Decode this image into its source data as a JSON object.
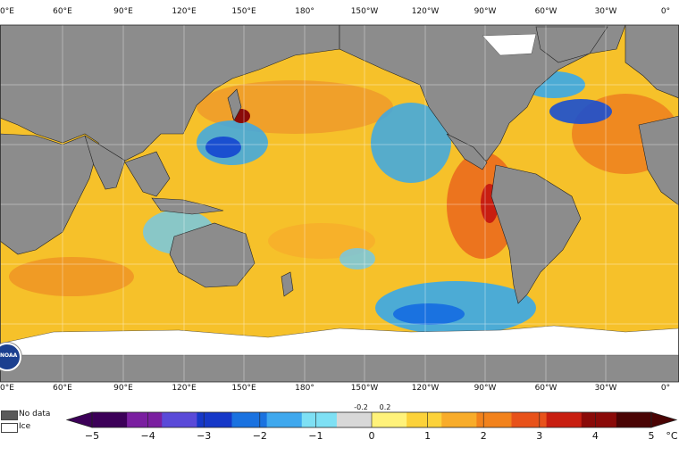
{
  "map": {
    "lon_labels": [
      "0°E",
      "60°E",
      "90°E",
      "120°E",
      "150°E",
      "180°",
      "150°W",
      "120°W",
      "90°W",
      "60°W",
      "30°W",
      "0°"
    ],
    "colors": {
      "land": "#8c8c8c",
      "ocean_warm": "#f6c12a",
      "ocean_hot": "#ee7a1e",
      "ocean_cold": "#3aa8e8",
      "ocean_deep_cold": "#1a4fd0",
      "ice": "#ffffff",
      "grid": "#ffffff"
    }
  },
  "legend": {
    "no_data_label": "No data",
    "ice_label": "Ice",
    "no_data_color": "#5a5a5a",
    "ice_color": "#ffffff"
  },
  "colorbar": {
    "ticks": [
      "−5",
      "−4",
      "−3",
      "−2",
      "−1",
      "0",
      "1",
      "2",
      "3",
      "4",
      "5"
    ],
    "small_ticks": [
      "-0.2",
      "0.2"
    ],
    "unit": "°C",
    "colors": [
      "#3c0058",
      "#7a1fa0",
      "#5a4ad8",
      "#1638c8",
      "#1a72e0",
      "#3fa8ee",
      "#7ee0f4",
      "#d8d8d8",
      "#fff27a",
      "#fcd23a",
      "#f8ac2a",
      "#f2821c",
      "#e8521a",
      "#c81e10",
      "#8a0a08",
      "#4a0404"
    ]
  },
  "logo": {
    "text": "NOAA",
    "bg": "#1b3f8f"
  }
}
